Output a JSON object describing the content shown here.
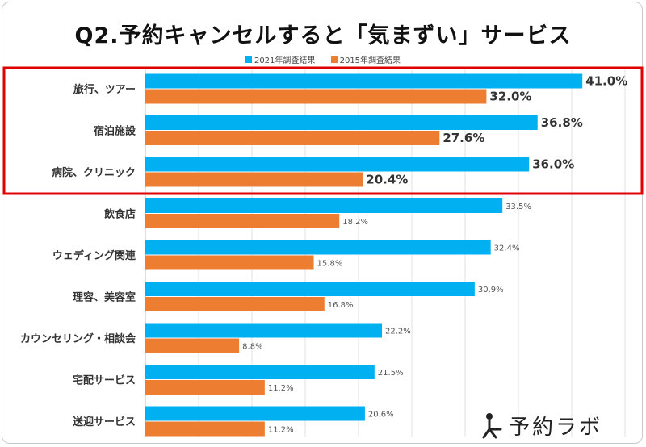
{
  "chart_data": {
    "type": "bar",
    "orientation": "horizontal",
    "title": "Q2.予約キャンセルすると「気まずい」サービス",
    "categories": [
      "旅行、ツアー",
      "宿泊施設",
      "病院、クリニック",
      "飲食店",
      "ウェディング関連",
      "理容、美容室",
      "カウンセリング・相談会",
      "宅配サービス",
      "送迎サービス"
    ],
    "series": [
      {
        "name": "2021年調査結果",
        "color": "#00b0f0",
        "values": [
          41.0,
          36.8,
          36.0,
          33.5,
          32.4,
          30.9,
          22.2,
          21.5,
          20.6
        ]
      },
      {
        "name": "2015年調査結果",
        "color": "#ed7d31",
        "values": [
          32.0,
          27.6,
          20.4,
          18.2,
          15.8,
          16.8,
          8.8,
          11.2,
          11.2
        ]
      }
    ],
    "value_unit": "%",
    "xlim": [
      0,
      45
    ],
    "highlight_categories": 3,
    "highlight_color": "#e00000",
    "grid": true
  },
  "logo": {
    "text": "予約ラボ",
    "icon": "person-icon"
  }
}
